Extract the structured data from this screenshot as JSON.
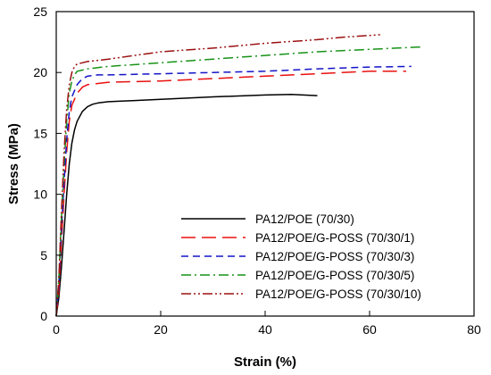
{
  "chart_data": {
    "type": "line",
    "title": "",
    "xlabel": "Strain (%)",
    "ylabel": "Stress (MPa)",
    "xlim": [
      0,
      80
    ],
    "ylim": [
      0,
      25
    ],
    "xticks": [
      "0",
      "20",
      "40",
      "60",
      "80"
    ],
    "yticks": [
      "0",
      "5",
      "10",
      "15",
      "20",
      "25"
    ],
    "grid": false,
    "legend_position": "lower-right",
    "series": [
      {
        "name": "PA12/POE (70/30)",
        "color": "#000000",
        "dash": "solid",
        "x": [
          0,
          0.5,
          1,
          1.5,
          2,
          2.5,
          3,
          3.5,
          4,
          5,
          6,
          7,
          8,
          10,
          15,
          20,
          30,
          40,
          45,
          50
        ],
        "y": [
          0,
          1.5,
          4,
          7,
          10,
          12.5,
          14.2,
          15.3,
          16.0,
          16.8,
          17.2,
          17.4,
          17.5,
          17.6,
          17.7,
          17.8,
          18.0,
          18.15,
          18.2,
          18.1
        ]
      },
      {
        "name": "PA12/POE/G-POSS (70/30/1)",
        "color": "#e8100f",
        "dash": "long-dash",
        "x": [
          0,
          0.5,
          1,
          1.5,
          2,
          2.5,
          3,
          4,
          5,
          6,
          8,
          10,
          20,
          30,
          40,
          50,
          60,
          67
        ],
        "y": [
          0,
          2,
          6,
          10,
          13.5,
          16,
          17.3,
          18.3,
          18.8,
          19.0,
          19.1,
          19.2,
          19.3,
          19.5,
          19.7,
          19.9,
          20.1,
          20.1
        ]
      },
      {
        "name": "PA12/POE/G-POSS (70/30/3)",
        "color": "#1414c8",
        "dash": "dash",
        "x": [
          0,
          0.5,
          1,
          1.5,
          2,
          2.5,
          3,
          4,
          5,
          6,
          8,
          10,
          20,
          30,
          40,
          50,
          60,
          68
        ],
        "y": [
          0,
          2.5,
          7,
          11,
          14.5,
          16.8,
          18,
          19.0,
          19.5,
          19.7,
          19.8,
          19.8,
          19.9,
          20.0,
          20.1,
          20.3,
          20.45,
          20.5
        ]
      },
      {
        "name": "PA12/POE/G-POSS (70/30/5)",
        "color": "#179317",
        "dash": "dash-dot",
        "x": [
          0,
          0.5,
          1,
          1.5,
          2,
          2.5,
          3,
          3.5,
          4,
          5,
          6,
          8,
          10,
          20,
          30,
          40,
          50,
          60,
          65,
          70
        ],
        "y": [
          0,
          3,
          8,
          12.5,
          16,
          18.3,
          19.3,
          19.8,
          20.1,
          20.2,
          20.3,
          20.4,
          20.5,
          20.8,
          21.1,
          21.4,
          21.7,
          21.9,
          22.0,
          22.1
        ]
      },
      {
        "name": "PA12/POE/G-POSS (70/30/10)",
        "color": "#9b1111",
        "dash": "dash-dot-dot",
        "x": [
          0,
          0.5,
          1,
          1.5,
          2,
          2.5,
          3,
          3.5,
          4,
          5,
          6,
          8,
          10,
          15,
          20,
          30,
          40,
          50,
          55,
          62
        ],
        "y": [
          0,
          3,
          8.5,
          13.5,
          17,
          19,
          20.0,
          20.5,
          20.7,
          20.8,
          20.9,
          21.0,
          21.1,
          21.4,
          21.7,
          22.0,
          22.4,
          22.7,
          22.9,
          23.1
        ]
      }
    ]
  }
}
